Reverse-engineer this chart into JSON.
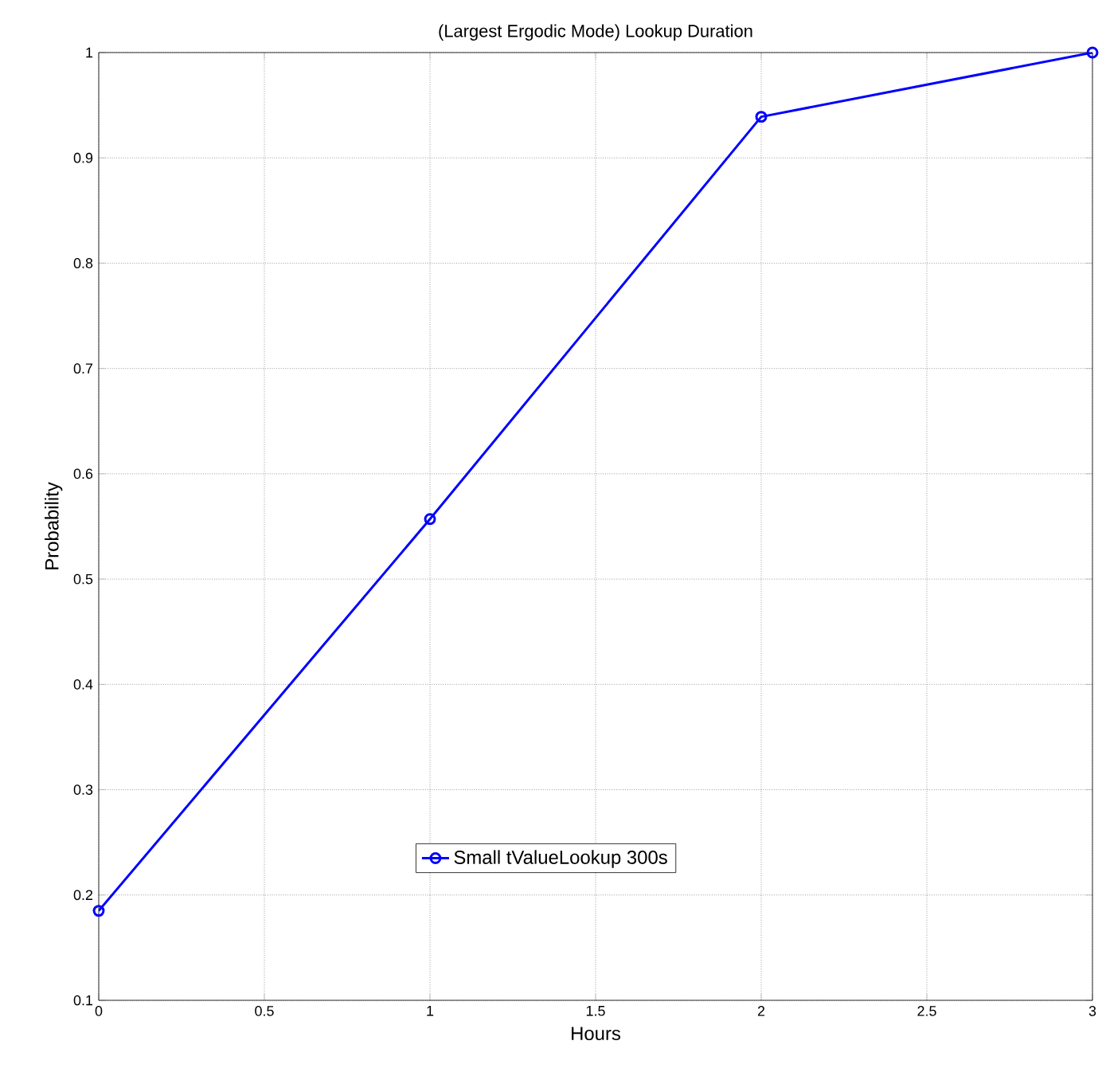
{
  "chart_data": {
    "type": "line",
    "title": "(Largest Ergodic Mode) Lookup Duration",
    "xlabel": "Hours",
    "ylabel": "Probability",
    "x": [
      0,
      1,
      2,
      3
    ],
    "series": [
      {
        "name": "Small tValueLookup 300s",
        "color": "#0000ff",
        "values": [
          0.185,
          0.557,
          0.939,
          1.0
        ]
      }
    ],
    "xlim": [
      0,
      3
    ],
    "ylim": [
      0.1,
      1
    ],
    "xticks": [
      0,
      0.5,
      1,
      1.5,
      2,
      2.5,
      3
    ],
    "yticks": [
      0.1,
      0.2,
      0.3,
      0.4,
      0.5,
      0.6,
      0.7,
      0.8,
      0.9,
      1
    ],
    "grid": true,
    "legend": "bottom",
    "marker": "circle",
    "line_style": "solid"
  }
}
